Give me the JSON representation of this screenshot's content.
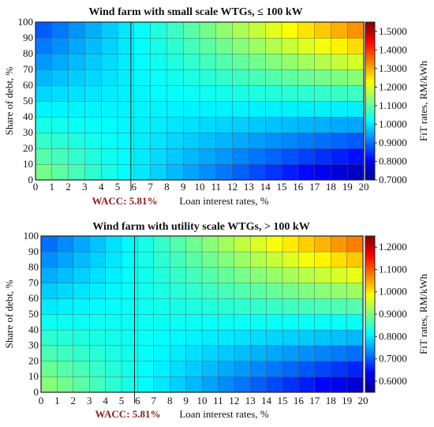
{
  "chart_data": [
    {
      "type": "heatmap",
      "title": "Wind farm with small scale WTGs, ≤ 100 kW",
      "xlabel": "Loan interest rates, %",
      "ylabel": "Share of debt, %",
      "colorbar_label": "FiT rates, RM/kWh",
      "x_ticks": [
        "0",
        "1",
        "2",
        "3",
        "4",
        "5",
        "6",
        "7",
        "8",
        "9",
        "10",
        "11",
        "12",
        "13",
        "14",
        "15",
        "16",
        "17",
        "18",
        "19",
        "20"
      ],
      "y_ticks": [
        "0",
        "10",
        "20",
        "30",
        "40",
        "50",
        "60",
        "70",
        "80",
        "90",
        "100"
      ],
      "xlim": [
        0,
        20
      ],
      "ylim": [
        0,
        100
      ],
      "colorbar_ticks": [
        "0.7000",
        "0.8000",
        "0.9000",
        "1.0000",
        "1.1000",
        "1.2000",
        "1.3000",
        "1.4000",
        "1.5000"
      ],
      "color_range": [
        0.7,
        1.55
      ],
      "reference_line_x": 5.81,
      "annotation": "WACC: 5.81%",
      "grid": true
    },
    {
      "type": "heatmap",
      "title": "Wind farm with utility scale WTGs, > 100 kW",
      "xlabel": "Loan interest rates, %",
      "ylabel": "Share of debt, %",
      "colorbar_label": "FiT rates, RM/kWh",
      "x_ticks": [
        "0",
        "1",
        "2",
        "3",
        "4",
        "5",
        "6",
        "7",
        "8",
        "9",
        "10",
        "11",
        "12",
        "13",
        "14",
        "15",
        "16",
        "17",
        "18",
        "19",
        "20"
      ],
      "y_ticks": [
        "0",
        "10",
        "20",
        "30",
        "40",
        "50",
        "60",
        "70",
        "80",
        "90",
        "100"
      ],
      "xlim": [
        0,
        20
      ],
      "ylim": [
        0,
        100
      ],
      "colorbar_ticks": [
        "0.6000",
        "0.7000",
        "0.8000",
        "0.9000",
        "1.0000",
        "1.1000",
        "1.2000"
      ],
      "color_range": [
        0.55,
        1.25
      ],
      "reference_line_x": 5.81,
      "annotation": "WACC: 5.81%",
      "grid": true
    }
  ]
}
